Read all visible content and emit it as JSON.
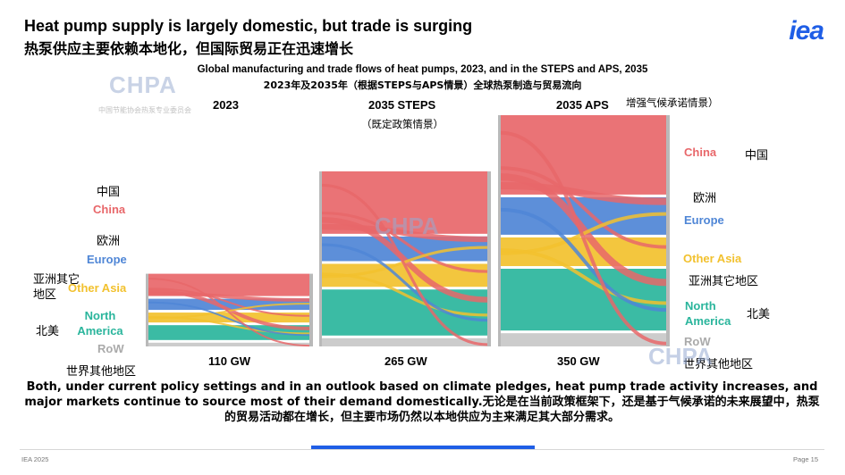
{
  "header": {
    "title_en": "Heat pump supply is largely domestic, but trade is surging",
    "title_zh": "热泵供应主要依赖本地化，但国际贸易正在迅速增长",
    "logo": "iea"
  },
  "watermark": {
    "text": "CHPA",
    "sub": "中国节能协会热泵专业委员会"
  },
  "colors": {
    "china": "#e8676a",
    "europe": "#4f86d6",
    "other_asia": "#f2c12e",
    "north_america": "#2ab59c",
    "row": "#c8c8c8",
    "accent": "#1f5ee6"
  },
  "chart_data": {
    "type": "sankey",
    "title": "Global manufacturing and trade flows of heat pumps, 2023, and in the STEPS and APS, 2035",
    "title_zh": "2023年及2035年（根据STEPS与APS情景）全球热泵制造与贸易流向",
    "unit": "GW",
    "regions": [
      {
        "key": "china",
        "label": "China",
        "zh": "中国"
      },
      {
        "key": "europe",
        "label": "Europe",
        "zh": "欧洲"
      },
      {
        "key": "other_asia",
        "label": "Other Asia",
        "zh": "亚洲其它地区"
      },
      {
        "key": "north_america",
        "label": "North America",
        "zh": "北美"
      },
      {
        "key": "row",
        "label": "RoW",
        "zh": "世界其他地区"
      }
    ],
    "scenarios": [
      {
        "name": "2023",
        "name_zh": "",
        "total": "110 GW",
        "total_gw": 110,
        "shares": [
          0.36,
          0.18,
          0.16,
          0.24,
          0.06
        ]
      },
      {
        "name": "2035 STEPS",
        "name_zh": "（既定政策情景）",
        "total": "265 GW",
        "total_gw": 265,
        "shares": [
          0.38,
          0.15,
          0.14,
          0.28,
          0.05
        ]
      },
      {
        "name": "2035 APS",
        "name_zh": "增强气候承诺情景）",
        "total": "350 GW",
        "total_gw": 350,
        "shares": [
          0.36,
          0.17,
          0.13,
          0.28,
          0.06
        ]
      }
    ]
  },
  "summary": "Both, under current policy settings and in an outlook based on climate pledges, heat pump trade activity increases, and major markets continue to source most of their demand domestically.无论是在当前政策框架下，还是基于气候承诺的未来展望中，热泵的贸易活动都在增长，但主要市场仍然以本地供应为主来满足其大部分需求。",
  "footer": {
    "left": "IEA 2025",
    "right": "Page 15"
  }
}
